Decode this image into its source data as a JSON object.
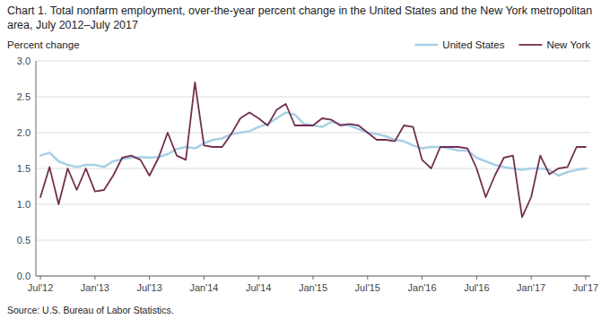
{
  "chart_data": {
    "type": "line",
    "title": "Chart 1. Total nonfarm employment, over-the-year percent change in the United States and the New York metropolitan area, July 2012–July 2017",
    "y_label": "Percent change",
    "source": "Source: U.S. Bureau of Labor Statistics.",
    "categories": [
      "Jul'12",
      null,
      null,
      null,
      null,
      null,
      "Jan'13",
      null,
      null,
      null,
      null,
      null,
      "Jul'13",
      null,
      null,
      null,
      null,
      null,
      "Jan'14",
      null,
      null,
      null,
      null,
      null,
      "Jul'14",
      null,
      null,
      null,
      null,
      null,
      "Jan'15",
      null,
      null,
      null,
      null,
      null,
      "Jul'15",
      null,
      null,
      null,
      null,
      null,
      "Jan'16",
      null,
      null,
      null,
      null,
      null,
      "Jul'16",
      null,
      null,
      null,
      null,
      null,
      "Jan'17",
      null,
      null,
      null,
      null,
      null,
      "Jul'17"
    ],
    "series": [
      {
        "name": "United States",
        "color": "#a8d0e6",
        "values": [
          1.68,
          1.72,
          1.6,
          1.55,
          1.52,
          1.55,
          1.55,
          1.52,
          1.6,
          1.63,
          1.65,
          1.66,
          1.65,
          1.66,
          1.7,
          1.77,
          1.8,
          1.78,
          1.85,
          1.9,
          1.92,
          1.98,
          2.0,
          2.02,
          2.08,
          2.12,
          2.2,
          2.28,
          2.25,
          2.12,
          2.1,
          2.08,
          2.15,
          2.12,
          2.1,
          2.05,
          2.0,
          1.98,
          1.95,
          1.9,
          1.88,
          1.82,
          1.78,
          1.8,
          1.8,
          1.78,
          1.75,
          1.75,
          1.65,
          1.6,
          1.55,
          1.52,
          1.5,
          1.48,
          1.5,
          1.5,
          1.48,
          1.4,
          1.45,
          1.48,
          1.5
        ]
      },
      {
        "name": "New York",
        "color": "#722f4f",
        "values": [
          1.1,
          1.52,
          1.0,
          1.5,
          1.2,
          1.5,
          1.18,
          1.2,
          1.4,
          1.65,
          1.68,
          1.62,
          1.4,
          1.65,
          2.0,
          1.68,
          1.62,
          2.7,
          1.82,
          1.8,
          1.8,
          1.98,
          2.2,
          2.28,
          2.2,
          2.1,
          2.32,
          2.4,
          2.1,
          2.1,
          2.1,
          2.2,
          2.18,
          2.1,
          2.12,
          2.1,
          2.0,
          1.9,
          1.9,
          1.88,
          2.1,
          2.08,
          1.62,
          1.5,
          1.8,
          1.8,
          1.8,
          1.78,
          1.5,
          1.1,
          1.4,
          1.65,
          1.68,
          0.82,
          1.1,
          1.68,
          1.42,
          1.5,
          1.52,
          1.8,
          1.8
        ]
      }
    ],
    "ylim": [
      0.0,
      3.0
    ],
    "yticks": [
      {
        "value": 0.0,
        "label": "0.0"
      },
      0.5,
      {
        "value": 1.0,
        "label": "1.0"
      },
      1.5,
      {
        "value": 2.0,
        "label": "2.0"
      },
      2.5,
      {
        "value": 3.0,
        "label": "3.0"
      }
    ],
    "grid": true,
    "legend": "upper right"
  }
}
